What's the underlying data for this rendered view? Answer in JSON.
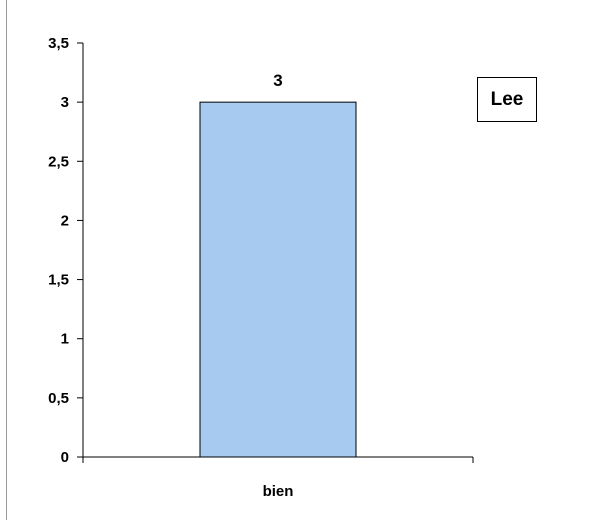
{
  "chart_data": {
    "type": "bar",
    "categories": [
      "bien"
    ],
    "values": [
      3
    ],
    "data_labels": [
      "3"
    ],
    "title": "",
    "xlabel": "",
    "ylabel": "",
    "ylim": [
      0,
      3.5
    ],
    "yticks": [
      "0",
      "0,5",
      "1",
      "1,5",
      "2",
      "2,5",
      "3",
      "3,5"
    ],
    "ytick_values": [
      0,
      0.5,
      1,
      1.5,
      2,
      2.5,
      3,
      3.5
    ],
    "grid": false,
    "legend": {
      "text": "Lee",
      "placement": "right"
    },
    "colors": {
      "bar_fill": "#a6caf0",
      "bar_stroke": "#000000",
      "axis": "#000000"
    }
  }
}
